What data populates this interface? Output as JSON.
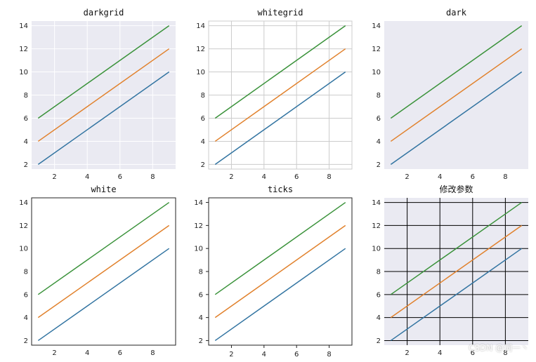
{
  "watermark": "CSDN @词一丶",
  "colors": {
    "series": [
      "#3274a1",
      "#e1812c",
      "#3a923a"
    ],
    "dark_bg": "#eaeaf2",
    "white_bg": "#ffffff",
    "white_grid": "#cccccc",
    "custom_grid": "#000000",
    "frame": "#222222"
  },
  "chart_data": [
    {
      "type": "line",
      "title": "darkgrid",
      "style": "darkgrid",
      "x": [
        1,
        9
      ],
      "series": [
        {
          "values": [
            2,
            10
          ]
        },
        {
          "values": [
            4,
            12
          ]
        },
        {
          "values": [
            6,
            14
          ]
        }
      ],
      "xticks": [
        2,
        4,
        6,
        8
      ],
      "yticks": [
        2,
        4,
        6,
        8,
        10,
        12,
        14
      ],
      "grid": true
    },
    {
      "type": "line",
      "title": "whitegrid",
      "style": "whitegrid",
      "x": [
        1,
        9
      ],
      "series": [
        {
          "values": [
            2,
            10
          ]
        },
        {
          "values": [
            4,
            12
          ]
        },
        {
          "values": [
            6,
            14
          ]
        }
      ],
      "xticks": [
        2,
        4,
        6,
        8
      ],
      "yticks": [
        2,
        4,
        6,
        8,
        10,
        12,
        14
      ],
      "grid": true
    },
    {
      "type": "line",
      "title": "dark",
      "style": "dark",
      "x": [
        1,
        9
      ],
      "series": [
        {
          "values": [
            2,
            10
          ]
        },
        {
          "values": [
            4,
            12
          ]
        },
        {
          "values": [
            6,
            14
          ]
        }
      ],
      "xticks": [
        2,
        4,
        6,
        8
      ],
      "yticks": [
        2,
        4,
        6,
        8,
        10,
        12,
        14
      ],
      "grid": false
    },
    {
      "type": "line",
      "title": "white",
      "style": "white",
      "x": [
        1,
        9
      ],
      "series": [
        {
          "values": [
            2,
            10
          ]
        },
        {
          "values": [
            4,
            12
          ]
        },
        {
          "values": [
            6,
            14
          ]
        }
      ],
      "xticks": [
        2,
        4,
        6,
        8
      ],
      "yticks": [
        2,
        4,
        6,
        8,
        10,
        12,
        14
      ],
      "grid": false
    },
    {
      "type": "line",
      "title": "ticks",
      "style": "ticks",
      "x": [
        1,
        9
      ],
      "series": [
        {
          "values": [
            2,
            10
          ]
        },
        {
          "values": [
            4,
            12
          ]
        },
        {
          "values": [
            6,
            14
          ]
        }
      ],
      "xticks": [
        2,
        4,
        6,
        8
      ],
      "yticks": [
        2,
        4,
        6,
        8,
        10,
        12,
        14
      ],
      "grid": false
    },
    {
      "type": "line",
      "title": "修改参数",
      "style": "custom",
      "x": [
        1,
        9
      ],
      "series": [
        {
          "values": [
            2,
            10
          ]
        },
        {
          "values": [
            4,
            12
          ]
        },
        {
          "values": [
            6,
            14
          ]
        }
      ],
      "xticks": [
        2,
        4,
        6,
        8
      ],
      "yticks": [
        2,
        4,
        6,
        8,
        10,
        12,
        14
      ],
      "grid": true
    }
  ]
}
